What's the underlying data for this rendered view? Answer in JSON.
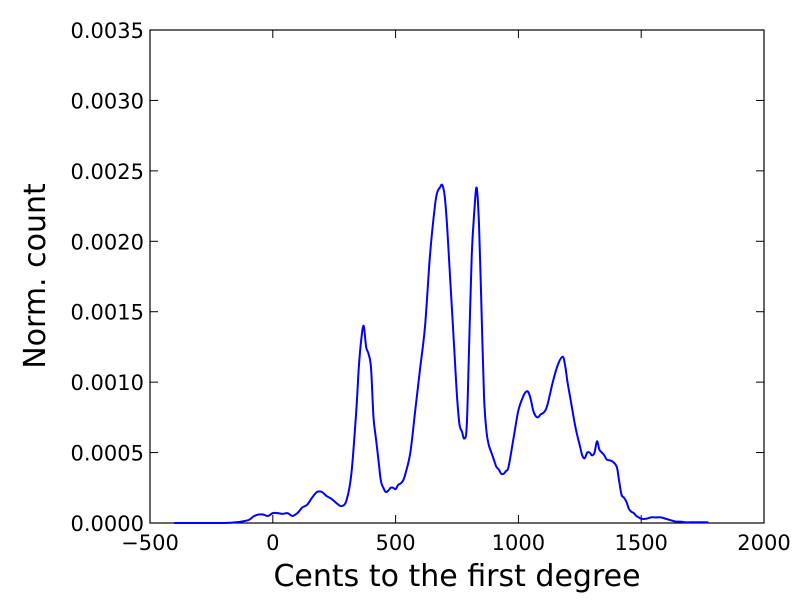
{
  "chart_data": {
    "type": "line",
    "title": "",
    "xlabel": "Cents to the first degree",
    "ylabel": "Norm. count",
    "xlim": [
      -500,
      2000
    ],
    "ylim": [
      0,
      0.0035
    ],
    "x_ticks": [
      -500,
      0,
      500,
      1000,
      1500,
      2000
    ],
    "x_tick_labels": [
      "−500",
      "0",
      "500",
      "1000",
      "1500",
      "2000"
    ],
    "y_ticks": [
      0,
      0.0005,
      0.001,
      0.0015,
      0.002,
      0.0025,
      0.003,
      0.0035
    ],
    "y_tick_labels": [
      "0.0000",
      "0.0005",
      "0.0010",
      "0.0015",
      "0.0020",
      "0.0025",
      "0.0030",
      "0.0035"
    ],
    "grid": false,
    "legend": "none",
    "series": [
      {
        "color": "#0000ff",
        "x": [
          -400,
          -300,
          -200,
          -150,
          -100,
          -80,
          -60,
          -40,
          -20,
          0,
          20,
          40,
          60,
          80,
          100,
          120,
          140,
          160,
          180,
          200,
          220,
          240,
          260,
          280,
          300,
          320,
          340,
          350,
          360,
          370,
          380,
          390,
          400,
          410,
          420,
          430,
          440,
          450,
          460,
          470,
          480,
          490,
          500,
          510,
          520,
          530,
          540,
          560,
          580,
          600,
          620,
          640,
          660,
          670,
          680,
          690,
          700,
          710,
          720,
          730,
          740,
          750,
          760,
          770,
          780,
          790,
          800,
          810,
          820,
          830,
          840,
          850,
          860,
          870,
          880,
          890,
          900,
          910,
          920,
          930,
          940,
          950,
          960,
          980,
          1000,
          1020,
          1030,
          1040,
          1050,
          1060,
          1070,
          1080,
          1090,
          1100,
          1110,
          1120,
          1140,
          1160,
          1180,
          1190,
          1200,
          1210,
          1220,
          1230,
          1240,
          1250,
          1260,
          1270,
          1280,
          1290,
          1300,
          1310,
          1320,
          1330,
          1340,
          1350,
          1360,
          1380,
          1400,
          1410,
          1420,
          1430,
          1440,
          1450,
          1460,
          1470,
          1480,
          1490,
          1500,
          1520,
          1540,
          1560,
          1580,
          1600,
          1620,
          1640,
          1660,
          1680,
          1700,
          1720,
          1740,
          1760,
          1770
        ],
        "y": [
          0,
          0,
          0,
          5e-06,
          2e-05,
          4.5e-05,
          6e-05,
          6e-05,
          5e-05,
          7e-05,
          7e-05,
          6.5e-05,
          7e-05,
          5e-05,
          7e-05,
          0.00011,
          0.00013,
          0.00018,
          0.00022,
          0.00022,
          0.00019,
          0.00017,
          0.00014,
          0.00012,
          0.00016,
          0.00035,
          0.0008,
          0.0011,
          0.0013,
          0.0014,
          0.00125,
          0.0012,
          0.0011,
          0.00075,
          0.0006,
          0.00045,
          0.0003,
          0.00025,
          0.00022,
          0.00023,
          0.00025,
          0.00025,
          0.00024,
          0.00027,
          0.00028,
          0.0003,
          0.00035,
          0.0005,
          0.0008,
          0.0011,
          0.0014,
          0.0019,
          0.00225,
          0.00235,
          0.00238,
          0.0024,
          0.00232,
          0.0021,
          0.0018,
          0.0015,
          0.0012,
          0.0009,
          0.0007,
          0.00065,
          0.0006,
          0.0007,
          0.0013,
          0.0019,
          0.0022,
          0.00238,
          0.0021,
          0.0015,
          0.0009,
          0.00065,
          0.00055,
          0.0005,
          0.00045,
          0.0004,
          0.00038,
          0.00035,
          0.00035,
          0.00037,
          0.0004,
          0.0006,
          0.0008,
          0.0009,
          0.00093,
          0.00093,
          0.00088,
          0.0008,
          0.00076,
          0.00075,
          0.00077,
          0.00078,
          0.0008,
          0.00085,
          0.001,
          0.00112,
          0.00118,
          0.00112,
          0.001,
          0.0009,
          0.0008,
          0.0007,
          0.00062,
          0.00055,
          0.00048,
          0.00046,
          0.0005,
          0.0005,
          0.00048,
          0.0005,
          0.00058,
          0.00052,
          0.0005,
          0.00048,
          0.00045,
          0.00044,
          0.0004,
          0.0003,
          0.0002,
          0.00018,
          0.00015,
          0.0001,
          8e-05,
          7e-05,
          5e-05,
          4e-05,
          3e-05,
          3e-05,
          4e-05,
          4e-05,
          4e-05,
          3e-05,
          2e-05,
          1e-05,
          1e-05,
          5e-06,
          5e-06,
          5e-06,
          5e-06,
          5e-06,
          5e-06
        ]
      }
    ]
  }
}
